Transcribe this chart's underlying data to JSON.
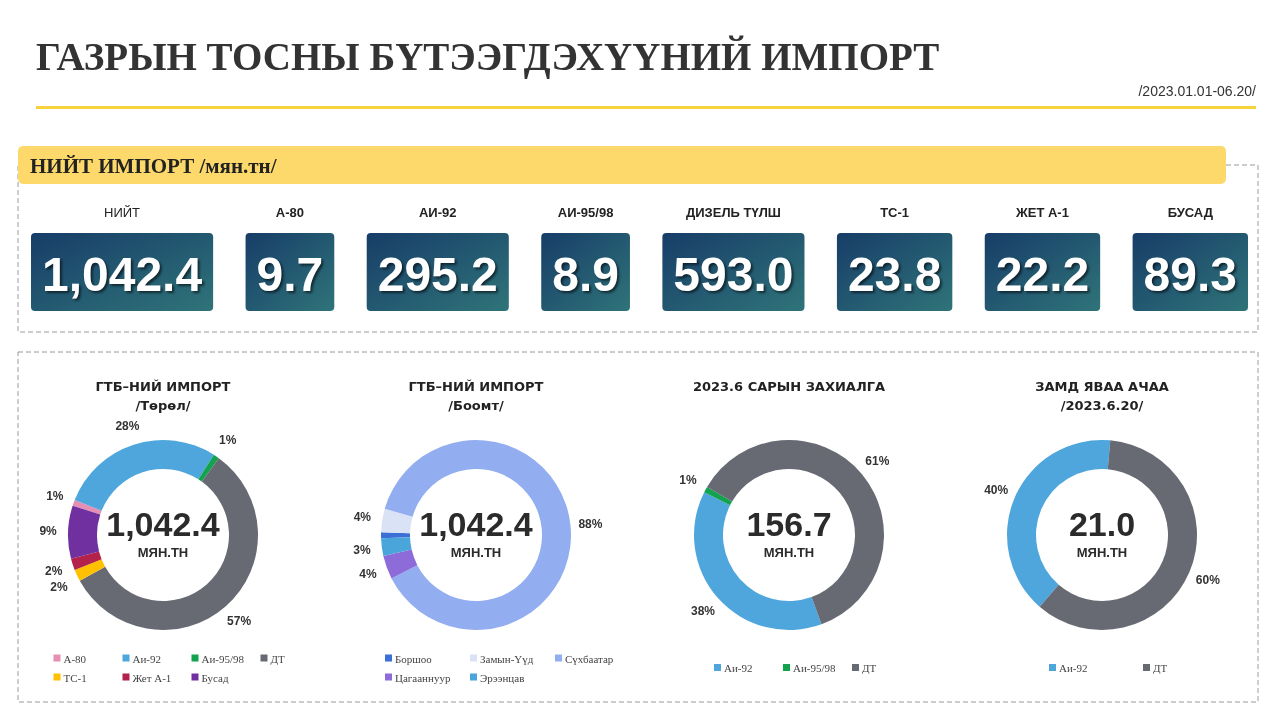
{
  "chart_data": [
    {
      "type": "other",
      "title": "ГАЗРЫН ТОСНЫ БҮТЭЭГДЭХҮҮНИЙ ИМПОРТ",
      "subtitle": "/2023.01.01-06.20/",
      "annotations": [
        "НИЙТ ИМПОРТ /мян.тн/"
      ],
      "categories": [
        "НИЙТ",
        "А-80",
        "АИ-92",
        "АИ-95/98",
        "ДИЗЕЛЬ ТҮЛШ",
        "ТС-1",
        "ЖЕТ А-1",
        "БУСАД"
      ],
      "values": [
        1042.4,
        9.7,
        295.2,
        8.9,
        593.0,
        23.8,
        22.2,
        89.3
      ],
      "value_labels": [
        "1,042.4",
        "9.7",
        "295.2",
        "8.9",
        "593.0",
        "23.8",
        "22.2",
        "89.3"
      ]
    },
    {
      "type": "donut",
      "title": "ГТБ–НИЙ ИМПОРТ",
      "subtitle": "/Төрөл/",
      "categories": [
        "А-80",
        "Аи-92",
        "Аи-95/98",
        "ДТ",
        "ТС-1",
        "Жет А-1",
        "Бусад"
      ],
      "values": [
        1,
        28,
        1,
        57,
        2,
        2,
        9
      ],
      "colors": [
        "#e58fb5",
        "#4ea6dc",
        "#13a34f",
        "#686a73",
        "#ffc000",
        "#b3224a",
        "#7030a0"
      ],
      "value_labels": [
        "1%",
        "28%",
        "1%",
        "57%",
        "2%",
        "2%",
        "9%"
      ],
      "annotations": [
        "1,042.4",
        "МЯН.ТН"
      ],
      "legend": "bottom"
    },
    {
      "type": "donut",
      "title": "ГТБ–НИЙ ИМПОРТ",
      "subtitle": "/Боомт/",
      "categories": [
        "Боршоо",
        "Замын-Үүд",
        "Сүхбаатар",
        "Цагааннуур",
        "Эрээнцав"
      ],
      "values": [
        1,
        4,
        88,
        4,
        3
      ],
      "colors": [
        "#3b6fd6",
        "#dae3f6",
        "#93aef0",
        "#8d6bd9",
        "#4aa6da"
      ],
      "value_labels": [
        null,
        "4%",
        "88%",
        "4%",
        "3%"
      ],
      "annotations": [
        "1,042.4",
        "МЯН.ТН"
      ],
      "legend": "bottom"
    },
    {
      "type": "donut",
      "title": "2023.6 САРЫН ЗАХИАЛГА",
      "categories": [
        "Аи-92",
        "Аи-95/98",
        "ДТ"
      ],
      "values": [
        38,
        1,
        61
      ],
      "colors": [
        "#4ea6dc",
        "#13a34f",
        "#686a73"
      ],
      "value_labels": [
        "38%",
        "1%",
        "61%"
      ],
      "annotations": [
        "156.7",
        "МЯН.ТН"
      ],
      "legend": "bottom"
    },
    {
      "type": "donut",
      "title": "ЗАМД ЯВАА АЧАА",
      "subtitle": "/2023.6.20/",
      "categories": [
        "Аи-92",
        "ДТ"
      ],
      "values": [
        40,
        60
      ],
      "colors": [
        "#4ea6dc",
        "#686a73"
      ],
      "value_labels": [
        "40%",
        "60%"
      ],
      "annotations": [
        "21.0",
        "МЯН.ТН"
      ],
      "legend": "bottom"
    }
  ]
}
